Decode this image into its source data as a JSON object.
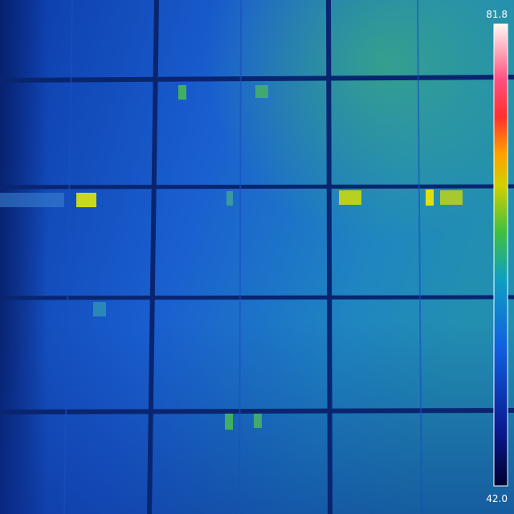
{
  "scale": {
    "max_label": "81.8",
    "min_label": "42.0"
  }
}
